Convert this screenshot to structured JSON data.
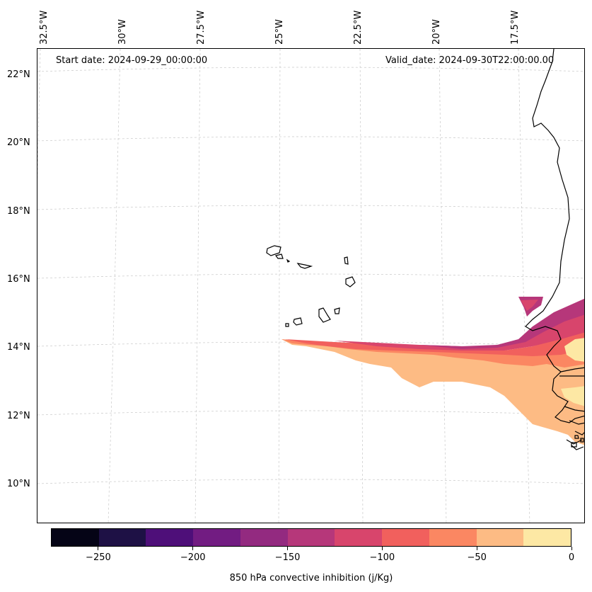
{
  "map": {
    "start_date": "Start date: 2024-09-29_00:00:00",
    "valid_date": "Valid_date: 2024-09-30T22:00:00.00",
    "lon_labels": [
      "32.5°W",
      "30°W",
      "27.5°W",
      "25°W",
      "22.5°W",
      "20°W",
      "17.5°W"
    ],
    "lat_labels": [
      "22°N",
      "20°N",
      "18°N",
      "16°N",
      "14°N",
      "12°N",
      "10°N"
    ],
    "coast_color": "#000000",
    "grid_color": "#c8c8c8"
  },
  "colorbar": {
    "label": "850 hPa convective inhibition (j/Kg)",
    "min": -275,
    "max": 0,
    "step": 25,
    "colors": [
      "#050416",
      "#1e1145",
      "#4e0f79",
      "#721c82",
      "#932a80",
      "#b6377a",
      "#d8456c",
      "#f1605d",
      "#fb8762",
      "#fdbb84",
      "#fde8a4"
    ],
    "ticks": [
      "−250",
      "−200",
      "−150",
      "−100",
      "−50",
      "0"
    ],
    "tick_values": [
      -250,
      -200,
      -150,
      -100,
      -50,
      0
    ]
  }
}
